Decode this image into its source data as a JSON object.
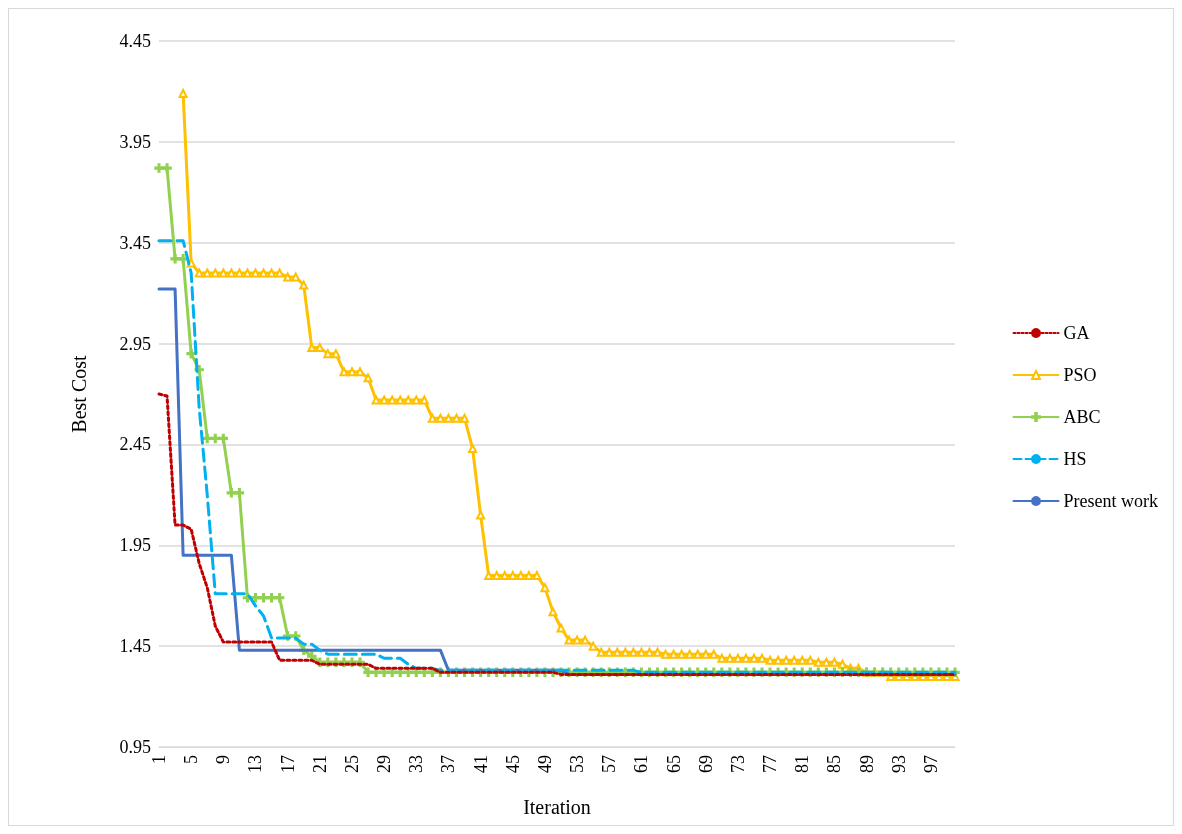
{
  "chart_data": {
    "type": "line",
    "xlabel": "Iteration",
    "ylabel": "Best Cost",
    "categories": [
      "1",
      null,
      null,
      null,
      "5",
      null,
      null,
      null,
      "9",
      null,
      null,
      null,
      "13",
      null,
      null,
      null,
      "17",
      null,
      null,
      null,
      "21",
      null,
      null,
      null,
      "25",
      null,
      null,
      null,
      "29",
      null,
      null,
      null,
      "33",
      null,
      null,
      null,
      "37",
      null,
      null,
      null,
      "41",
      null,
      null,
      null,
      "45",
      null,
      null,
      null,
      "49",
      null,
      null,
      null,
      "53",
      null,
      null,
      null,
      "57",
      null,
      null,
      null,
      "61",
      null,
      null,
      null,
      "65",
      null,
      null,
      null,
      "69",
      null,
      null,
      null,
      "73",
      null,
      null,
      null,
      "77",
      null,
      null,
      null,
      "81",
      null,
      null,
      null,
      "85",
      null,
      null,
      null,
      "89",
      null,
      null,
      null,
      "93",
      null,
      null,
      null,
      "97",
      null,
      null,
      null
    ],
    "ylim": [
      0.95,
      4.45
    ],
    "yticks": [
      0.95,
      1.45,
      1.95,
      2.45,
      2.95,
      3.45,
      3.95,
      4.45
    ],
    "grid": "y",
    "legend": "right",
    "series": [
      {
        "name": "GA",
        "color": "#c00000",
        "line_style": "dotted",
        "marker": "none",
        "values": [
          2.7,
          2.69,
          2.05,
          2.05,
          2.03,
          1.86,
          1.74,
          1.55,
          1.47,
          1.47,
          1.47,
          1.47,
          1.47,
          1.47,
          1.47,
          1.38,
          1.38,
          1.38,
          1.38,
          1.38,
          1.36,
          1.36,
          1.36,
          1.36,
          1.36,
          1.36,
          1.36,
          1.34,
          1.34,
          1.34,
          1.34,
          1.34,
          1.34,
          1.34,
          1.34,
          1.32,
          1.32,
          1.32,
          1.32,
          1.32,
          1.32,
          1.32,
          1.32,
          1.32,
          1.32,
          1.32,
          1.32,
          1.32,
          1.32,
          1.32,
          1.31,
          1.31,
          1.31,
          1.31,
          1.31,
          1.31,
          1.31,
          1.31,
          1.31,
          1.31,
          1.31,
          1.31,
          1.31,
          1.31,
          1.31,
          1.31,
          1.31,
          1.31,
          1.31,
          1.31,
          1.31,
          1.31,
          1.31,
          1.31,
          1.31,
          1.31,
          1.31,
          1.31,
          1.31,
          1.31,
          1.31,
          1.31,
          1.31,
          1.31,
          1.31,
          1.31,
          1.31,
          1.31,
          1.31,
          1.31,
          1.31,
          1.31,
          1.31,
          1.31,
          1.31,
          1.31,
          1.31,
          1.31,
          1.31,
          1.31
        ]
      },
      {
        "name": "PSO",
        "color": "#ffc000",
        "line_style": "solid",
        "marker": "triangle",
        "values": [
          null,
          null,
          null,
          4.19,
          3.35,
          3.3,
          3.3,
          3.3,
          3.3,
          3.3,
          3.3,
          3.3,
          3.3,
          3.3,
          3.3,
          3.3,
          3.28,
          3.28,
          3.24,
          2.93,
          2.93,
          2.9,
          2.9,
          2.81,
          2.81,
          2.81,
          2.78,
          2.67,
          2.67,
          2.67,
          2.67,
          2.67,
          2.67,
          2.67,
          2.58,
          2.58,
          2.58,
          2.58,
          2.58,
          2.43,
          2.1,
          1.8,
          1.8,
          1.8,
          1.8,
          1.8,
          1.8,
          1.8,
          1.74,
          1.62,
          1.54,
          1.48,
          1.48,
          1.48,
          1.45,
          1.42,
          1.42,
          1.42,
          1.42,
          1.42,
          1.42,
          1.42,
          1.42,
          1.41,
          1.41,
          1.41,
          1.41,
          1.41,
          1.41,
          1.41,
          1.39,
          1.39,
          1.39,
          1.39,
          1.39,
          1.39,
          1.38,
          1.38,
          1.38,
          1.38,
          1.38,
          1.38,
          1.37,
          1.37,
          1.37,
          1.36,
          1.34,
          1.34,
          1.32,
          1.32,
          1.32,
          1.3,
          1.3,
          1.3,
          1.3,
          1.3,
          1.3,
          1.3,
          1.3,
          1.3
        ]
      },
      {
        "name": "ABC",
        "color": "#92d050",
        "line_style": "solid",
        "marker": "cross",
        "values": [
          3.82,
          3.82,
          3.37,
          3.37,
          2.9,
          2.82,
          2.48,
          2.48,
          2.48,
          2.21,
          2.21,
          1.69,
          1.69,
          1.69,
          1.69,
          1.69,
          1.5,
          1.5,
          1.43,
          1.4,
          1.37,
          1.37,
          1.37,
          1.37,
          1.37,
          1.37,
          1.32,
          1.32,
          1.32,
          1.32,
          1.32,
          1.32,
          1.32,
          1.32,
          1.32,
          1.32,
          1.32,
          1.32,
          1.32,
          1.32,
          1.32,
          1.32,
          1.32,
          1.32,
          1.32,
          1.32,
          1.32,
          1.32,
          1.32,
          1.32,
          1.32,
          1.32,
          1.32,
          1.32,
          1.32,
          1.32,
          1.32,
          1.32,
          1.32,
          1.32,
          1.32,
          1.32,
          1.32,
          1.32,
          1.32,
          1.32,
          1.32,
          1.32,
          1.32,
          1.32,
          1.32,
          1.32,
          1.32,
          1.32,
          1.32,
          1.32,
          1.32,
          1.32,
          1.32,
          1.32,
          1.32,
          1.32,
          1.32,
          1.32,
          1.32,
          1.32,
          1.32,
          1.32,
          1.32,
          1.32,
          1.32,
          1.32,
          1.32,
          1.32,
          1.32,
          1.32,
          1.32,
          1.32,
          1.32,
          1.32
        ]
      },
      {
        "name": "HS",
        "color": "#00b0f0",
        "line_style": "dashed",
        "marker": "none",
        "values": [
          3.46,
          3.46,
          3.46,
          3.46,
          3.3,
          2.63,
          2.2,
          1.71,
          1.71,
          1.71,
          1.71,
          1.71,
          1.65,
          1.6,
          1.49,
          1.49,
          1.49,
          1.49,
          1.46,
          1.46,
          1.43,
          1.41,
          1.41,
          1.41,
          1.41,
          1.41,
          1.41,
          1.41,
          1.39,
          1.39,
          1.39,
          1.36,
          1.34,
          1.34,
          1.34,
          1.33,
          1.33,
          1.33,
          1.33,
          1.33,
          1.33,
          1.33,
          1.33,
          1.33,
          1.33,
          1.33,
          1.33,
          1.33,
          1.33,
          1.33,
          1.33,
          1.33,
          1.33,
          1.33,
          1.33,
          1.33,
          1.33,
          1.33,
          1.33,
          1.33,
          1.32,
          1.32,
          1.32,
          1.32,
          1.32,
          1.32,
          1.32,
          1.32,
          1.32,
          1.32,
          1.32,
          1.32,
          1.32,
          1.32,
          1.32,
          1.32,
          1.32,
          1.32,
          1.32,
          1.32,
          1.32,
          1.32,
          1.32,
          1.32,
          1.32,
          1.32,
          1.32,
          1.32,
          1.32,
          1.32,
          1.32,
          1.32,
          1.32,
          1.32,
          1.32,
          1.32,
          1.32,
          1.32,
          1.32,
          1.32
        ]
      },
      {
        "name": "Present work",
        "color": "#4472c4",
        "line_style": "solid",
        "marker": "none",
        "values": [
          3.22,
          3.22,
          3.22,
          1.9,
          1.9,
          1.9,
          1.9,
          1.9,
          1.9,
          1.9,
          1.43,
          1.43,
          1.43,
          1.43,
          1.43,
          1.43,
          1.43,
          1.43,
          1.43,
          1.43,
          1.43,
          1.43,
          1.43,
          1.43,
          1.43,
          1.43,
          1.43,
          1.43,
          1.43,
          1.43,
          1.43,
          1.43,
          1.43,
          1.43,
          1.43,
          1.43,
          1.33,
          1.33,
          1.33,
          1.33,
          1.33,
          1.33,
          1.33,
          1.33,
          1.33,
          1.33,
          1.33,
          1.33,
          1.33,
          1.33,
          1.33,
          1.31,
          1.31,
          1.31,
          1.31,
          1.31,
          1.31,
          1.31,
          1.31,
          1.31,
          1.31,
          1.31,
          1.31,
          1.31,
          1.31,
          1.31,
          1.31,
          1.31,
          1.31,
          1.31,
          1.31,
          1.31,
          1.31,
          1.31,
          1.31,
          1.31,
          1.31,
          1.31,
          1.31,
          1.31,
          1.31,
          1.31,
          1.31,
          1.31,
          1.31,
          1.31,
          1.31,
          1.31,
          1.31,
          1.31,
          1.31,
          1.31,
          1.31,
          1.31,
          1.31,
          1.31,
          1.31,
          1.31,
          1.31,
          1.31
        ]
      }
    ]
  }
}
